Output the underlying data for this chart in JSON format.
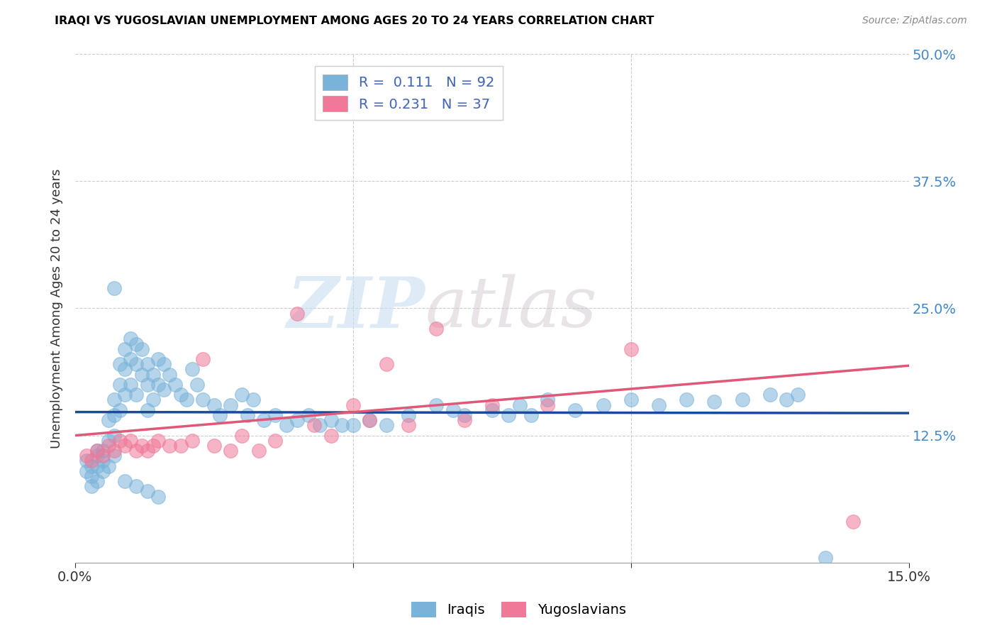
{
  "title": "IRAQI VS YUGOSLAVIAN UNEMPLOYMENT AMONG AGES 20 TO 24 YEARS CORRELATION CHART",
  "source": "Source: ZipAtlas.com",
  "ylabel": "Unemployment Among Ages 20 to 24 years",
  "xlim": [
    0.0,
    0.15
  ],
  "ylim": [
    0.0,
    0.5
  ],
  "yticks": [
    0.125,
    0.25,
    0.375,
    0.5
  ],
  "ytick_labels": [
    "12.5%",
    "25.0%",
    "37.5%",
    "50.0%"
  ],
  "xticks": [
    0.0,
    0.05,
    0.1,
    0.15
  ],
  "xtick_labels": [
    "0.0%",
    "",
    "",
    "15.0%"
  ],
  "iraqi_color": "#7ab3d9",
  "yugoslav_color": "#f07898",
  "iraqi_line_color": "#1a4a9e",
  "yugoslav_line_color": "#e05878",
  "watermark_zip": "ZIP",
  "watermark_atlas": "atlas",
  "iraqi_x": [
    0.002,
    0.002,
    0.003,
    0.003,
    0.003,
    0.004,
    0.004,
    0.004,
    0.004,
    0.005,
    0.005,
    0.005,
    0.006,
    0.006,
    0.006,
    0.007,
    0.007,
    0.007,
    0.007,
    0.008,
    0.008,
    0.008,
    0.009,
    0.009,
    0.009,
    0.01,
    0.01,
    0.01,
    0.011,
    0.011,
    0.011,
    0.012,
    0.012,
    0.013,
    0.013,
    0.013,
    0.014,
    0.014,
    0.015,
    0.015,
    0.016,
    0.016,
    0.017,
    0.018,
    0.019,
    0.02,
    0.021,
    0.022,
    0.023,
    0.025,
    0.026,
    0.028,
    0.03,
    0.031,
    0.032,
    0.034,
    0.036,
    0.038,
    0.04,
    0.042,
    0.044,
    0.046,
    0.048,
    0.05,
    0.053,
    0.056,
    0.06,
    0.065,
    0.068,
    0.07,
    0.075,
    0.078,
    0.08,
    0.082,
    0.085,
    0.09,
    0.095,
    0.1,
    0.105,
    0.11,
    0.115,
    0.12,
    0.125,
    0.128,
    0.13,
    0.135,
    0.007,
    0.009,
    0.011,
    0.013,
    0.015
  ],
  "iraqi_y": [
    0.1,
    0.09,
    0.095,
    0.085,
    0.075,
    0.105,
    0.11,
    0.095,
    0.08,
    0.11,
    0.09,
    0.1,
    0.14,
    0.12,
    0.095,
    0.16,
    0.145,
    0.125,
    0.105,
    0.195,
    0.175,
    0.15,
    0.21,
    0.19,
    0.165,
    0.22,
    0.2,
    0.175,
    0.215,
    0.195,
    0.165,
    0.21,
    0.185,
    0.195,
    0.175,
    0.15,
    0.185,
    0.16,
    0.2,
    0.175,
    0.195,
    0.17,
    0.185,
    0.175,
    0.165,
    0.16,
    0.19,
    0.175,
    0.16,
    0.155,
    0.145,
    0.155,
    0.165,
    0.145,
    0.16,
    0.14,
    0.145,
    0.135,
    0.14,
    0.145,
    0.135,
    0.14,
    0.135,
    0.135,
    0.14,
    0.135,
    0.145,
    0.155,
    0.15,
    0.145,
    0.15,
    0.145,
    0.155,
    0.145,
    0.16,
    0.15,
    0.155,
    0.16,
    0.155,
    0.16,
    0.158,
    0.16,
    0.165,
    0.16,
    0.165,
    0.005,
    0.27,
    0.08,
    0.075,
    0.07,
    0.065
  ],
  "yugoslav_x": [
    0.002,
    0.003,
    0.004,
    0.005,
    0.006,
    0.007,
    0.008,
    0.009,
    0.01,
    0.011,
    0.012,
    0.013,
    0.014,
    0.015,
    0.017,
    0.019,
    0.021,
    0.023,
    0.025,
    0.028,
    0.03,
    0.033,
    0.036,
    0.04,
    0.043,
    0.046,
    0.05,
    0.053,
    0.056,
    0.06,
    0.065,
    0.07,
    0.075,
    0.085,
    0.1,
    0.14,
    0.05
  ],
  "yugoslav_y": [
    0.105,
    0.1,
    0.11,
    0.105,
    0.115,
    0.11,
    0.12,
    0.115,
    0.12,
    0.11,
    0.115,
    0.11,
    0.115,
    0.12,
    0.115,
    0.115,
    0.12,
    0.2,
    0.115,
    0.11,
    0.125,
    0.11,
    0.12,
    0.245,
    0.135,
    0.125,
    0.155,
    0.14,
    0.195,
    0.135,
    0.23,
    0.14,
    0.155,
    0.155,
    0.21,
    0.04,
    0.45
  ]
}
